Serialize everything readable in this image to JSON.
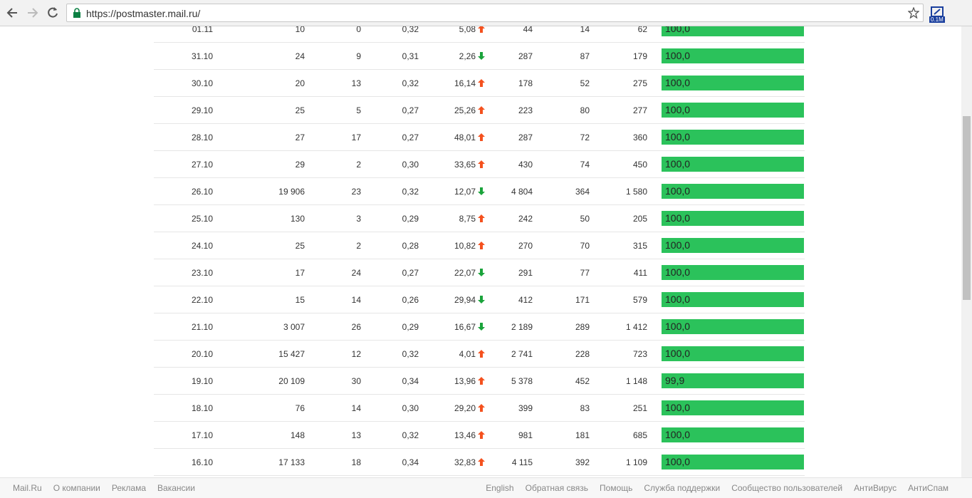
{
  "browser": {
    "url": "https://postmaster.mail.ru/",
    "extension_badge": "0.1M"
  },
  "table": {
    "rows": [
      {
        "cells": [
          "01.11",
          "10",
          "0",
          "0,32",
          "5,08",
          "44",
          "14",
          "62"
        ],
        "trend": "up",
        "score": "100,0"
      },
      {
        "cells": [
          "31.10",
          "24",
          "9",
          "0,31",
          "2,26",
          "287",
          "87",
          "179"
        ],
        "trend": "down",
        "score": "100,0"
      },
      {
        "cells": [
          "30.10",
          "20",
          "13",
          "0,32",
          "16,14",
          "178",
          "52",
          "275"
        ],
        "trend": "up",
        "score": "100,0"
      },
      {
        "cells": [
          "29.10",
          "25",
          "5",
          "0,27",
          "25,26",
          "223",
          "80",
          "277"
        ],
        "trend": "up",
        "score": "100,0"
      },
      {
        "cells": [
          "28.10",
          "27",
          "17",
          "0,27",
          "48,01",
          "287",
          "72",
          "360"
        ],
        "trend": "up",
        "score": "100,0"
      },
      {
        "cells": [
          "27.10",
          "29",
          "2",
          "0,30",
          "33,65",
          "430",
          "74",
          "450"
        ],
        "trend": "up",
        "score": "100,0"
      },
      {
        "cells": [
          "26.10",
          "19 906",
          "23",
          "0,32",
          "12,07",
          "4 804",
          "364",
          "1 580"
        ],
        "trend": "down",
        "score": "100,0"
      },
      {
        "cells": [
          "25.10",
          "130",
          "3",
          "0,29",
          "8,75",
          "242",
          "50",
          "205"
        ],
        "trend": "up",
        "score": "100,0"
      },
      {
        "cells": [
          "24.10",
          "25",
          "2",
          "0,28",
          "10,82",
          "270",
          "70",
          "315"
        ],
        "trend": "up",
        "score": "100,0"
      },
      {
        "cells": [
          "23.10",
          "17",
          "24",
          "0,27",
          "22,07",
          "291",
          "77",
          "411"
        ],
        "trend": "down",
        "score": "100,0"
      },
      {
        "cells": [
          "22.10",
          "15",
          "14",
          "0,26",
          "29,94",
          "412",
          "171",
          "579"
        ],
        "trend": "down",
        "score": "100,0"
      },
      {
        "cells": [
          "21.10",
          "3 007",
          "26",
          "0,29",
          "16,67",
          "2 189",
          "289",
          "1 412"
        ],
        "trend": "down",
        "score": "100,0"
      },
      {
        "cells": [
          "20.10",
          "15 427",
          "12",
          "0,32",
          "4,01",
          "2 741",
          "228",
          "723"
        ],
        "trend": "up",
        "score": "100,0"
      },
      {
        "cells": [
          "19.10",
          "20 109",
          "30",
          "0,34",
          "13,96",
          "5 378",
          "452",
          "1 148"
        ],
        "trend": "up",
        "score": "99,9"
      },
      {
        "cells": [
          "18.10",
          "76",
          "14",
          "0,30",
          "29,20",
          "399",
          "83",
          "251"
        ],
        "trend": "up",
        "score": "100,0"
      },
      {
        "cells": [
          "17.10",
          "148",
          "13",
          "0,32",
          "13,46",
          "981",
          "181",
          "685"
        ],
        "trend": "up",
        "score": "100,0"
      },
      {
        "cells": [
          "16.10",
          "17 133",
          "18",
          "0,34",
          "32,83",
          "4 115",
          "392",
          "1 109"
        ],
        "trend": "up",
        "score": "100,0"
      }
    ]
  },
  "footer": {
    "left": [
      "Mail.Ru",
      "О компании",
      "Реклама",
      "Вакансии"
    ],
    "right": [
      "English",
      "Обратная связь",
      "Помощь",
      "Служба поддержки",
      "Сообщество пользователей",
      "АнтиВирус",
      "АнтиСпам"
    ]
  }
}
